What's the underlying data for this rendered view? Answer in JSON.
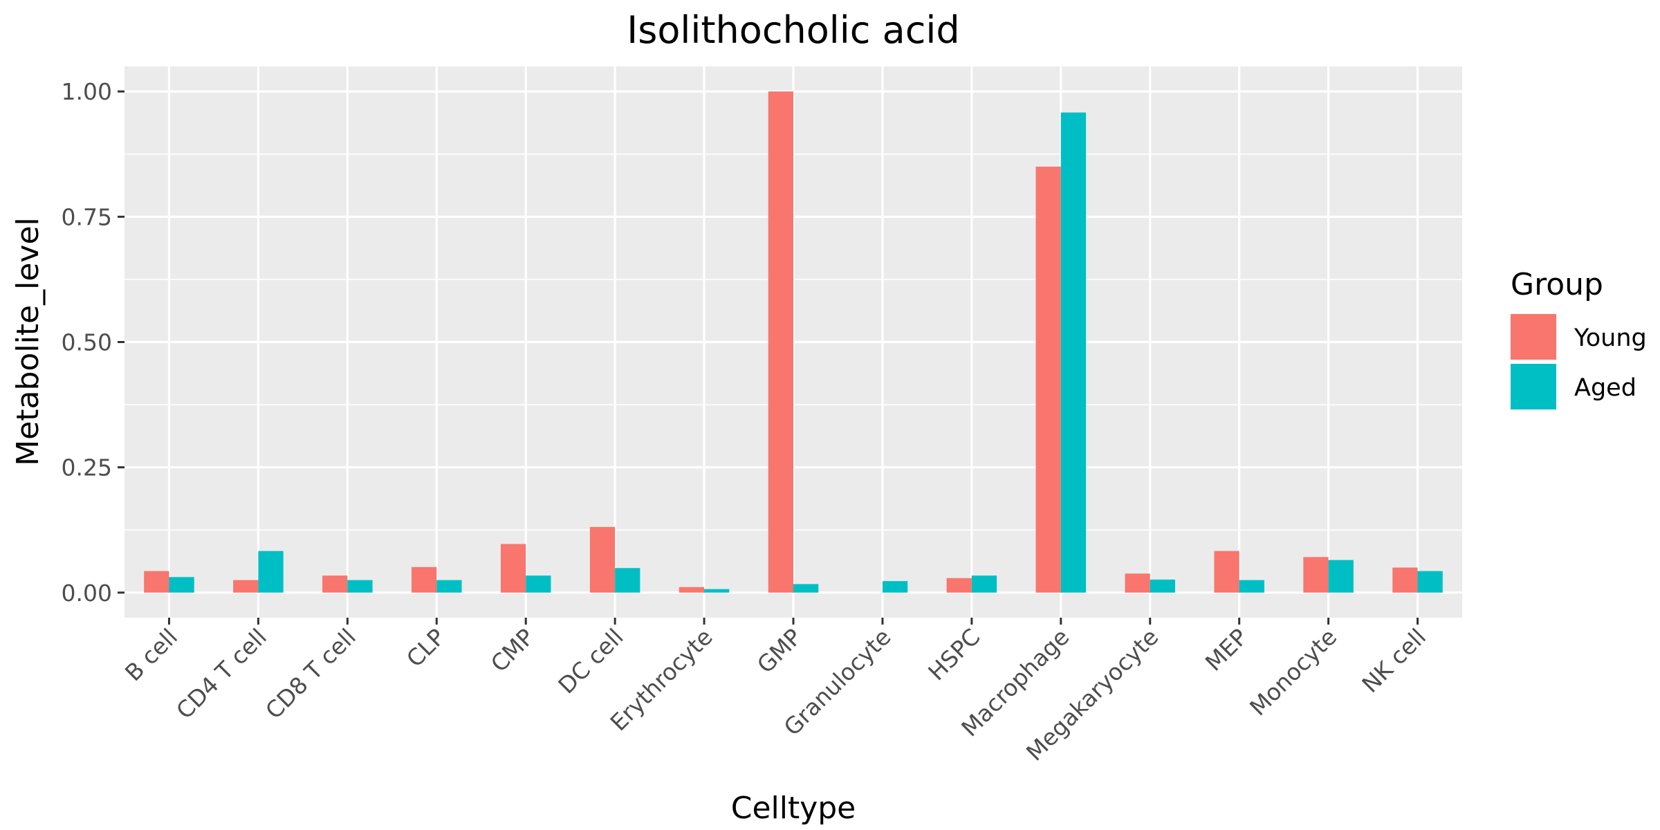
{
  "chart_data": {
    "type": "bar",
    "title": "Isolithocholic acid",
    "xlabel": "Celltype",
    "ylabel": "Metabolite_level",
    "categories": [
      "B cell",
      "CD4 T cell",
      "CD8 T cell",
      "CLP",
      "CMP",
      "DC cell",
      "Erythrocyte",
      "GMP",
      "Granulocyte",
      "HSPC",
      "Macrophage",
      "Megakaryocyte",
      "MEP",
      "Monocyte",
      "NK cell"
    ],
    "series": [
      {
        "name": "Young",
        "color": "#F8766D",
        "values": [
          0.043,
          0.025,
          0.034,
          0.051,
          0.097,
          0.131,
          0.011,
          1.0,
          0.0,
          0.029,
          0.85,
          0.038,
          0.083,
          0.071,
          0.05
        ]
      },
      {
        "name": "Aged",
        "color": "#00BFC4",
        "values": [
          0.031,
          0.083,
          0.025,
          0.025,
          0.034,
          0.049,
          0.007,
          0.017,
          0.023,
          0.034,
          0.958,
          0.026,
          0.025,
          0.065,
          0.043
        ]
      }
    ],
    "ylim": [
      -0.05,
      1.05
    ],
    "yticks": [
      0.0,
      0.25,
      0.5,
      0.75,
      1.0
    ],
    "ytick_labels": [
      "0.00",
      "0.25",
      "0.50",
      "0.75",
      "1.00"
    ],
    "grid": true,
    "panel_background": "#EBEBEB",
    "legend": {
      "title": "Group",
      "position": "right"
    }
  }
}
